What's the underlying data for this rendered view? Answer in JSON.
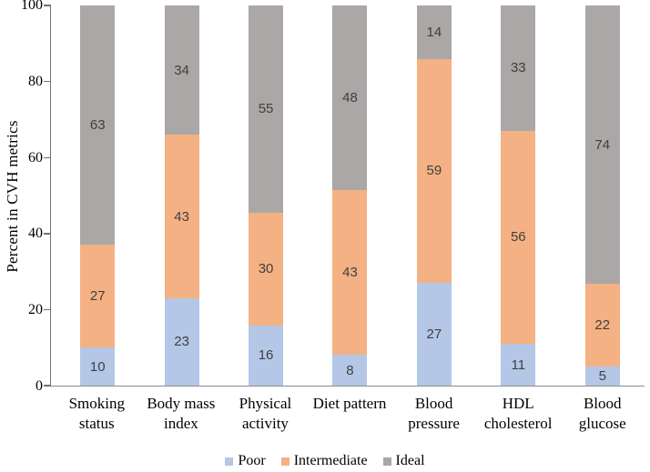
{
  "chart_data": {
    "type": "bar",
    "stacked": true,
    "title": "",
    "xlabel": "",
    "ylabel": "Percent in CVH metrics",
    "ylim": [
      0,
      100
    ],
    "yticks": [
      0,
      20,
      40,
      60,
      80,
      100
    ],
    "grid": false,
    "legend_position": "bottom",
    "categories": [
      "Smoking status",
      "Body mass index",
      "Physical activity",
      "Diet pattern",
      "Blood pressure",
      "HDL cholesterol",
      "Blood glucose"
    ],
    "category_label_lines": [
      [
        "Smoking",
        "status"
      ],
      [
        "Body mass",
        "index"
      ],
      [
        "Physical",
        "activity"
      ],
      [
        "Diet pattern"
      ],
      [
        "Blood",
        "pressure"
      ],
      [
        "HDL",
        "cholesterol"
      ],
      [
        "Blood",
        "glucose"
      ]
    ],
    "series": [
      {
        "name": "Poor",
        "color": "#b4c7e7",
        "values": [
          10,
          23,
          16,
          8,
          27,
          11,
          5
        ]
      },
      {
        "name": "Intermediate",
        "color": "#f4b183",
        "values": [
          27,
          43,
          30,
          43,
          59,
          56,
          22
        ]
      },
      {
        "name": "Ideal",
        "color": "#aaa7a6",
        "values": [
          63,
          34,
          55,
          48,
          14,
          33,
          74
        ]
      }
    ],
    "colors": {
      "data_label": "#404040",
      "axis_line": "#737373",
      "tick_label": "#000000"
    }
  }
}
